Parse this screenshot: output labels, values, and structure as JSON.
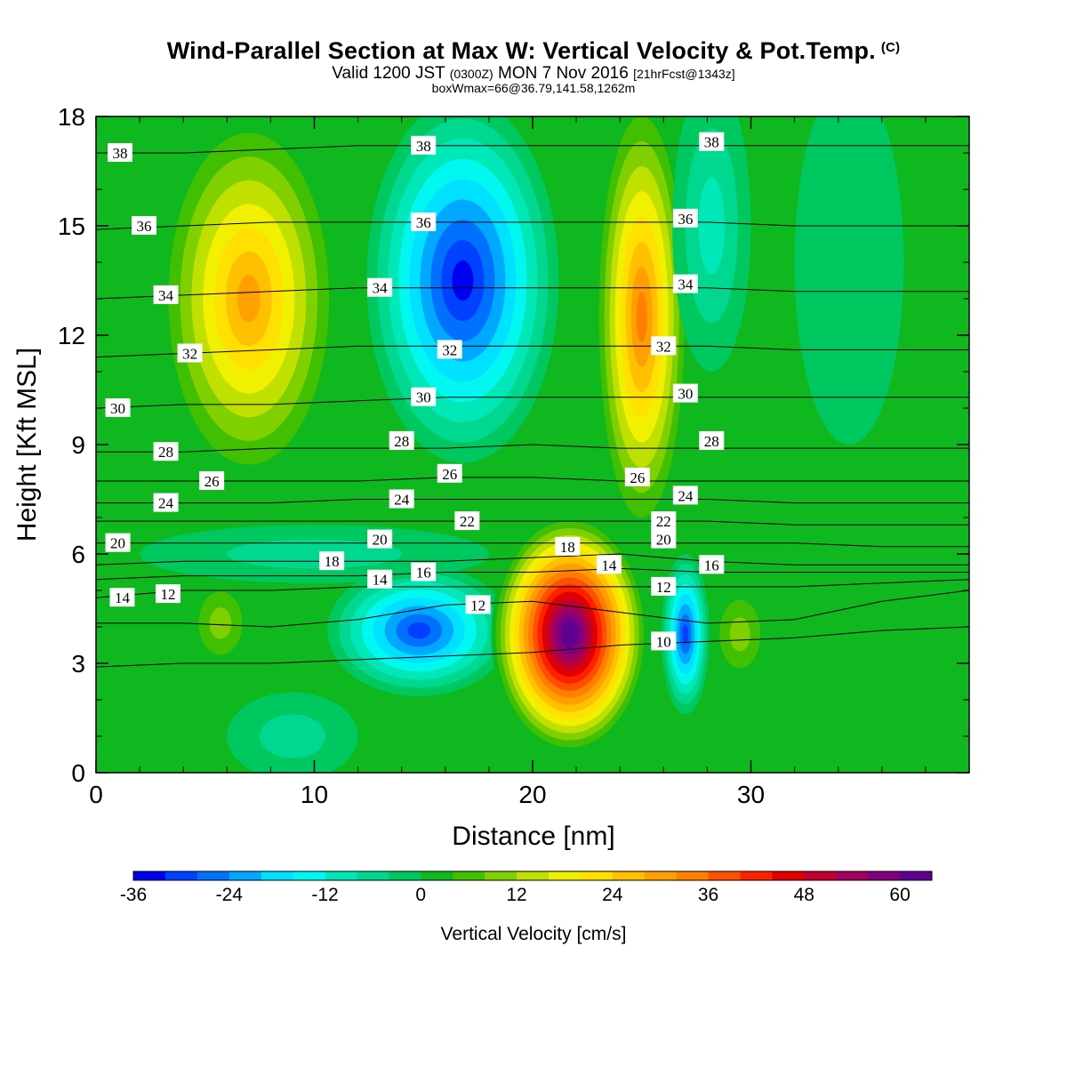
{
  "title": {
    "main": "Wind-Parallel Section at Max W: Vertical Velocity & Pot.Temp.",
    "copyright": "(C)",
    "valid_prefix": "Valid 1200 JST",
    "valid_utc": "(0300Z)",
    "valid_date": "MON 7 Nov 2016",
    "forecast": "[21hrFcst@1343z]",
    "box_info": "boxWmax=66@36.79,141.58,1262m"
  },
  "colorbar": {
    "label": "Vertical Velocity [cm/s]",
    "tick_labels": [
      "-36",
      "-24",
      "-12",
      "0",
      "12",
      "24",
      "36",
      "48",
      "60"
    ],
    "colors": [
      "#0000f0",
      "#0040ff",
      "#0070ff",
      "#00a8ff",
      "#00e0ff",
      "#00f8f0",
      "#00e8b8",
      "#00d890",
      "#00c860",
      "#10b820",
      "#40c000",
      "#80d000",
      "#c0e000",
      "#f0f000",
      "#ffe000",
      "#ffc000",
      "#ffa000",
      "#ff8000",
      "#ff5000",
      "#ff2000",
      "#e00000",
      "#c00030",
      "#a00060",
      "#800080",
      "#600090"
    ]
  },
  "chart_data": {
    "type": "heatmap",
    "title": "Wind-Parallel Section at Max W: Vertical Velocity & Pot.Temp.",
    "xlabel": "Distance [nm]",
    "ylabel": "Height [Kft MSL]",
    "xlim": [
      0,
      40
    ],
    "ylim": [
      0,
      18
    ],
    "x_ticks": [
      0,
      10,
      20,
      30
    ],
    "y_ticks": [
      0,
      3,
      6,
      9,
      12,
      15,
      18
    ],
    "field": "Vertical Velocity [cm/s]",
    "field_range": [
      -36,
      66
    ],
    "cells": [
      {
        "x": 7,
        "y": 13,
        "rx": 4.2,
        "ry": 5.2,
        "w": 30
      },
      {
        "x": 16.8,
        "y": 13.5,
        "rx": 4.4,
        "ry": 5.0,
        "w": -36
      },
      {
        "x": 25.0,
        "y": 12.5,
        "rx": 2.2,
        "ry": 6.2,
        "w": 36
      },
      {
        "x": 28.2,
        "y": 15.0,
        "rx": 1.8,
        "ry": 4.0,
        "w": -12
      },
      {
        "x": 34.5,
        "y": 14.0,
        "rx": 2.5,
        "ry": 5.0,
        "w": -3
      },
      {
        "x": 5.7,
        "y": 4.1,
        "rx": 1.5,
        "ry": 1.3,
        "w": 12
      },
      {
        "x": 14.8,
        "y": 3.9,
        "rx": 4.2,
        "ry": 1.8,
        "w": -30
      },
      {
        "x": 21.7,
        "y": 3.8,
        "rx": 3.6,
        "ry": 3.3,
        "w": 66
      },
      {
        "x": 27.0,
        "y": 3.8,
        "rx": 1.1,
        "ry": 2.2,
        "w": -30
      },
      {
        "x": 29.5,
        "y": 3.8,
        "rx": 1.4,
        "ry": 1.4,
        "w": 12
      },
      {
        "x": 10,
        "y": 6.0,
        "rx": 8.0,
        "ry": 0.8,
        "w": -6
      },
      {
        "x": 9,
        "y": 1.0,
        "rx": 3.0,
        "ry": 1.2,
        "w": -6
      }
    ],
    "isentropes": [
      {
        "label": "10",
        "y": [
          2.9,
          3.0,
          3.0,
          3.1,
          3.2,
          3.3,
          3.5,
          3.6,
          3.7,
          3.9,
          4.0
        ],
        "label_x": 26.0
      },
      {
        "label": "12",
        "y": [
          4.1,
          4.1,
          4.0,
          4.2,
          4.6,
          4.7,
          4.4,
          4.1,
          4.2,
          4.7,
          5.0
        ],
        "label_x": 17.5
      },
      {
        "label": "14",
        "y": [
          4.8,
          5.0,
          5.0,
          5.1,
          5.1,
          5.1,
          5.1,
          5.1,
          5.1,
          5.2,
          5.3
        ],
        "label_x": 1.2
      },
      {
        "label": "16",
        "y": [
          5.3,
          5.4,
          5.4,
          5.4,
          5.5,
          5.5,
          5.6,
          5.5,
          5.5,
          5.5,
          5.5
        ],
        "label_x": 15.0
      },
      {
        "label": "18",
        "y": [
          5.7,
          5.8,
          5.8,
          5.8,
          5.8,
          5.9,
          6.0,
          5.8,
          5.7,
          5.7,
          5.7
        ],
        "label_x": 10.8
      },
      {
        "label": "20",
        "y": [
          6.3,
          6.3,
          6.3,
          6.3,
          6.3,
          6.3,
          6.3,
          6.3,
          6.3,
          6.2,
          6.2
        ],
        "label_x": 1.0
      },
      {
        "label": "22",
        "y": [
          6.9,
          6.9,
          6.9,
          6.9,
          6.9,
          6.9,
          6.9,
          6.9,
          6.8,
          6.8,
          6.8
        ],
        "label_x": 17.0
      },
      {
        "label": "24",
        "y": [
          7.4,
          7.4,
          7.4,
          7.5,
          7.5,
          7.5,
          7.5,
          7.5,
          7.4,
          7.4,
          7.4
        ],
        "label_x": 3.2
      },
      {
        "label": "26",
        "y": [
          8.0,
          8.0,
          8.0,
          8.0,
          8.1,
          8.1,
          8.0,
          8.0,
          8.0,
          8.0,
          8.0
        ],
        "label_x": 5.3
      },
      {
        "label": "28",
        "y": [
          8.8,
          8.8,
          8.9,
          8.9,
          8.9,
          9.0,
          8.9,
          8.9,
          8.9,
          8.9,
          8.9
        ],
        "label_x": 3.2
      },
      {
        "label": "30",
        "y": [
          10.0,
          10.1,
          10.1,
          10.2,
          10.3,
          10.3,
          10.3,
          10.3,
          10.3,
          10.3,
          10.3
        ],
        "label_x": 1.0
      },
      {
        "label": "32",
        "y": [
          11.4,
          11.5,
          11.6,
          11.7,
          11.7,
          11.7,
          11.7,
          11.7,
          11.6,
          11.6,
          11.6
        ],
        "label_x": 4.3
      },
      {
        "label": "34",
        "y": [
          13.0,
          13.1,
          13.2,
          13.3,
          13.3,
          13.3,
          13.3,
          13.3,
          13.2,
          13.2,
          13.2
        ],
        "label_x": 3.2
      },
      {
        "label": "36",
        "y": [
          14.9,
          15.0,
          15.1,
          15.1,
          15.1,
          15.1,
          15.1,
          15.1,
          15.0,
          15.0,
          15.0
        ],
        "label_x": 2.2
      },
      {
        "label": "38",
        "y": [
          17.0,
          17.0,
          17.1,
          17.2,
          17.2,
          17.2,
          17.2,
          17.2,
          17.2,
          17.2,
          17.2
        ],
        "label_x": 1.1
      }
    ],
    "labels_on_plot": [
      {
        "text": "38",
        "x": 15.0,
        "y": 17.2
      },
      {
        "text": "38",
        "x": 28.2,
        "y": 17.3
      },
      {
        "text": "36",
        "x": 15.0,
        "y": 15.1
      },
      {
        "text": "36",
        "x": 27.0,
        "y": 15.2
      },
      {
        "text": "34",
        "x": 13.0,
        "y": 13.3
      },
      {
        "text": "34",
        "x": 27.0,
        "y": 13.4
      },
      {
        "text": "32",
        "x": 16.2,
        "y": 11.6
      },
      {
        "text": "32",
        "x": 26.0,
        "y": 11.7
      },
      {
        "text": "30",
        "x": 15.0,
        "y": 10.3
      },
      {
        "text": "30",
        "x": 27.0,
        "y": 10.4
      },
      {
        "text": "28",
        "x": 14.0,
        "y": 9.1
      },
      {
        "text": "28",
        "x": 28.2,
        "y": 9.1
      },
      {
        "text": "26",
        "x": 16.2,
        "y": 8.2
      },
      {
        "text": "26",
        "x": 24.8,
        "y": 8.1
      },
      {
        "text": "24",
        "x": 14.0,
        "y": 7.5
      },
      {
        "text": "24",
        "x": 27.0,
        "y": 7.6
      },
      {
        "text": "22",
        "x": 26.0,
        "y": 6.9
      },
      {
        "text": "20",
        "x": 13.0,
        "y": 6.4
      },
      {
        "text": "20",
        "x": 26.0,
        "y": 6.4
      },
      {
        "text": "18",
        "x": 21.6,
        "y": 6.2
      },
      {
        "text": "16",
        "x": 28.2,
        "y": 5.7
      },
      {
        "text": "14",
        "x": 13.0,
        "y": 5.3
      },
      {
        "text": "14",
        "x": 23.5,
        "y": 5.7
      },
      {
        "text": "12",
        "x": 3.3,
        "y": 4.9
      },
      {
        "text": "12",
        "x": 26.0,
        "y": 5.1
      }
    ],
    "grid": false
  }
}
